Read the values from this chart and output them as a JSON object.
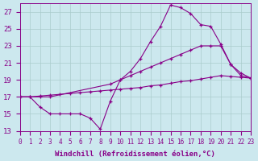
{
  "bg_color": "#cce8ee",
  "grid_color": "#aacccc",
  "line_color": "#880088",
  "xlabel": "Windchill (Refroidissement éolien,°C)",
  "xlabel_fontsize": 6.5,
  "xtick_fontsize": 5.5,
  "ytick_fontsize": 6.5,
  "xlim": [
    0,
    23
  ],
  "ylim": [
    13,
    28
  ],
  "yticks": [
    13,
    15,
    17,
    19,
    21,
    23,
    25,
    27
  ],
  "xticks": [
    0,
    1,
    2,
    3,
    4,
    5,
    6,
    7,
    8,
    9,
    10,
    11,
    12,
    13,
    14,
    15,
    16,
    17,
    18,
    19,
    20,
    21,
    22,
    23
  ],
  "line1_x": [
    0,
    1,
    2,
    3,
    4,
    5,
    6,
    7,
    8,
    9,
    10,
    11,
    12,
    13,
    14,
    15,
    16,
    17,
    18,
    19,
    20,
    21,
    22,
    23
  ],
  "line1_y": [
    17.0,
    17.0,
    15.8,
    15.0,
    15.0,
    15.0,
    15.0,
    14.5,
    13.2,
    16.5,
    19.0,
    20.0,
    21.5,
    23.5,
    25.3,
    27.8,
    27.5,
    26.8,
    25.5,
    25.3,
    23.2,
    20.8,
    19.5,
    19.2
  ],
  "line2_x": [
    0,
    2,
    3,
    9,
    10,
    11,
    12,
    13,
    14,
    15,
    16,
    17,
    18,
    19,
    20,
    21,
    22,
    23
  ],
  "line2_y": [
    17.0,
    17.0,
    17.0,
    18.5,
    19.0,
    19.5,
    20.0,
    20.5,
    21.0,
    21.5,
    22.0,
    22.5,
    23.0,
    23.0,
    23.0,
    20.8,
    19.8,
    19.2
  ],
  "line3_x": [
    0,
    1,
    2,
    3,
    4,
    5,
    6,
    7,
    8,
    9,
    10,
    11,
    12,
    13,
    14,
    15,
    16,
    17,
    18,
    19,
    20,
    21,
    22,
    23
  ],
  "line3_y": [
    17.0,
    17.0,
    17.1,
    17.2,
    17.3,
    17.4,
    17.5,
    17.6,
    17.7,
    17.8,
    17.9,
    18.0,
    18.1,
    18.3,
    18.4,
    18.6,
    18.8,
    18.9,
    19.1,
    19.3,
    19.5,
    19.4,
    19.3,
    19.2
  ]
}
